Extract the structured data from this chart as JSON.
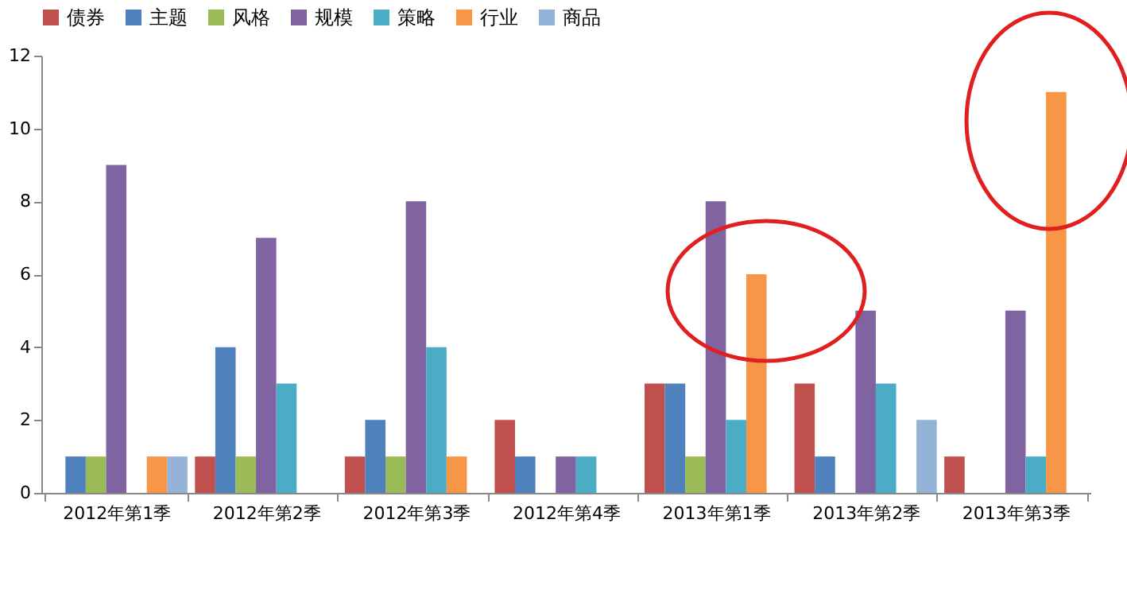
{
  "chart_data": {
    "type": "bar",
    "categories": [
      "2012年第1季",
      "2012年第2季",
      "2012年第3季",
      "2012年第4季",
      "2013年第1季",
      "2013年第2季",
      "2013年第3季"
    ],
    "series": [
      {
        "name": "债券",
        "color": "#c0504d",
        "values": [
          0,
          1,
          1,
          2,
          3,
          3,
          1
        ]
      },
      {
        "name": "主题",
        "color": "#4f81bd",
        "values": [
          1,
          4,
          2,
          1,
          3,
          1,
          0
        ]
      },
      {
        "name": "风格",
        "color": "#9bbb59",
        "values": [
          1,
          1,
          1,
          0,
          1,
          0,
          0
        ]
      },
      {
        "name": "规模",
        "color": "#8064a2",
        "values": [
          9,
          7,
          8,
          1,
          8,
          5,
          5
        ]
      },
      {
        "name": "策略",
        "color": "#4bacc6",
        "values": [
          0,
          3,
          4,
          1,
          2,
          3,
          1
        ]
      },
      {
        "name": "行业",
        "color": "#f79646",
        "values": [
          1,
          0,
          1,
          0,
          6,
          0,
          11
        ]
      },
      {
        "name": "商品",
        "color": "#95b3d7",
        "values": [
          1,
          0,
          0,
          0,
          0,
          2,
          0
        ]
      }
    ],
    "ylim": [
      0,
      12
    ],
    "yticks": [
      0,
      2,
      4,
      6,
      8,
      10,
      12
    ],
    "grid": false,
    "legend": "top"
  }
}
